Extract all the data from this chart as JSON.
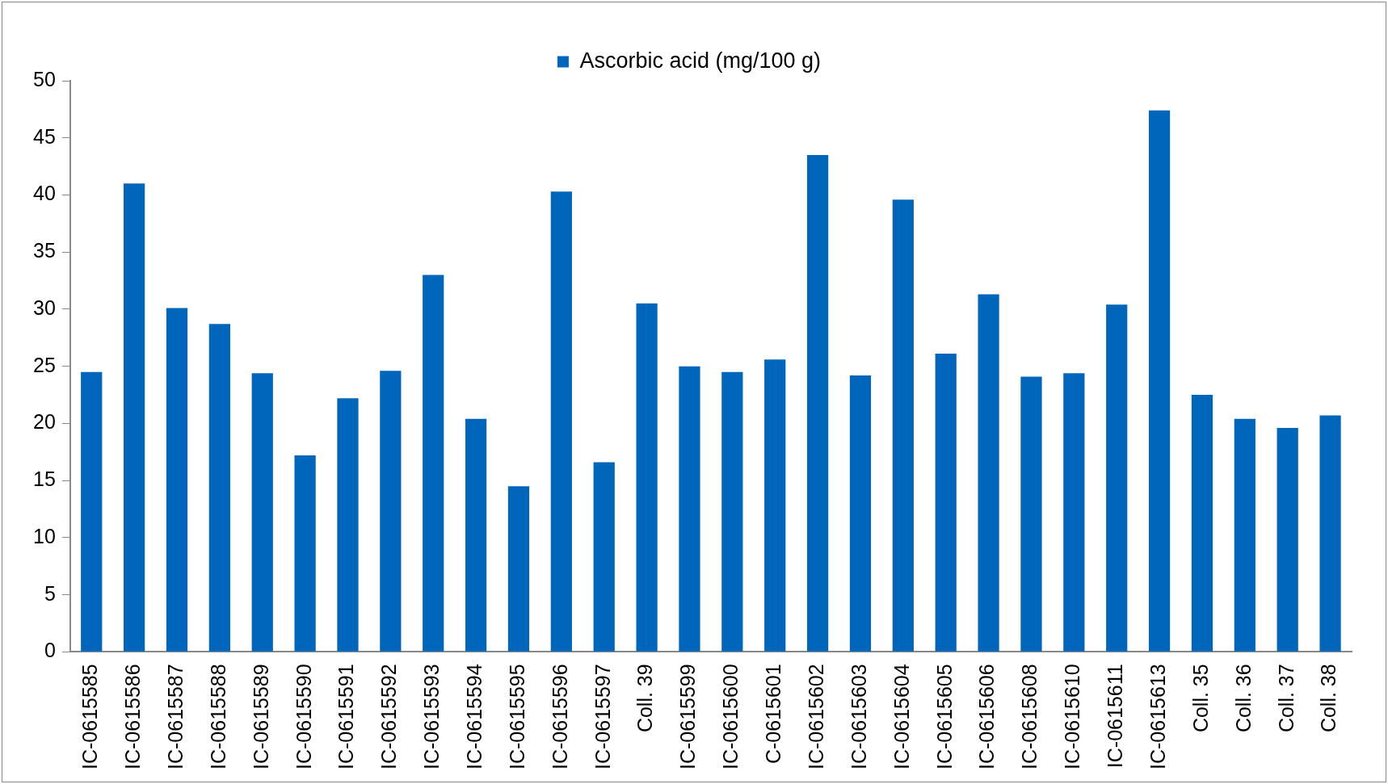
{
  "chart_data": {
    "type": "bar",
    "categories": [
      "IC-0615585",
      "IC-0615586",
      "IC-0615587",
      "IC-0615588",
      "IC-0615589",
      "IC-0615590",
      "IC-0615591",
      "IC-0615592",
      "IC-0615593",
      "IC-0615594",
      "IC-0615595",
      "IC-0615596",
      "IC-0615597",
      "Coll. 39",
      "IC-0615599",
      "IC-0615600",
      "C-0615601",
      "IC-0615602",
      "IC-0615603",
      "IC-0615604",
      "IC-0615605",
      "IC-0615606",
      "IC-0615608",
      "IC-0615610",
      "IC-0615611",
      "IC-0615613",
      "Coll. 35",
      "Coll. 36",
      "Coll. 37",
      "Coll. 38"
    ],
    "series": [
      {
        "name": "Ascorbic acid (mg/100 g)",
        "color": "#0066bb",
        "values": [
          24.5,
          41,
          30.1,
          28.7,
          24.4,
          17.2,
          22.2,
          24.6,
          33,
          20.4,
          14.5,
          40.3,
          16.6,
          30.5,
          25,
          24.5,
          25.6,
          43.5,
          24.2,
          39.6,
          26.1,
          31.3,
          24.1,
          24.4,
          30.4,
          47.4,
          22.5,
          20.4,
          19.6,
          20.7
        ]
      }
    ],
    "ylim": [
      0,
      50
    ],
    "yticks": [
      0,
      5,
      10,
      15,
      20,
      25,
      30,
      35,
      40,
      45,
      50
    ],
    "grid": false,
    "legend": "top"
  }
}
